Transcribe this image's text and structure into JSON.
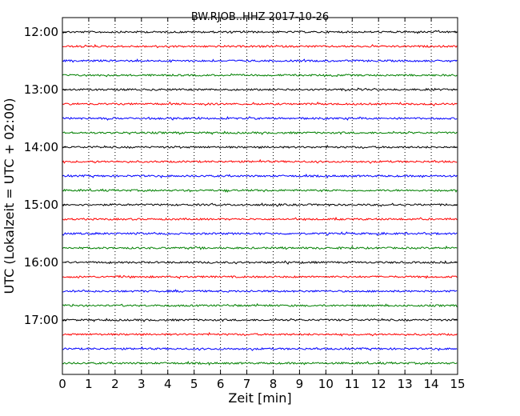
{
  "chart_data": {
    "type": "line",
    "title": "BW.RJOB..HHZ 2017-10-26",
    "xlabel": "Zeit  [min]",
    "ylabel": "UTC (Lokalzeit = UTC + 02:00)",
    "xlim": [
      0,
      15
    ],
    "x_ticks": [
      "0",
      "1",
      "2",
      "3",
      "4",
      "5",
      "6",
      "7",
      "8",
      "9",
      "10",
      "11",
      "12",
      "13",
      "14",
      "15"
    ],
    "y_ticks": [
      {
        "label": "12:00",
        "row": 0
      },
      {
        "label": "13:00",
        "row": 4
      },
      {
        "label": "14:00",
        "row": 8
      },
      {
        "label": "15:00",
        "row": 12
      },
      {
        "label": "16:00",
        "row": 16
      },
      {
        "label": "17:00",
        "row": 20
      }
    ],
    "row_count": 24,
    "grid": "vertical dotted",
    "colors": [
      "#000000",
      "#ff0000",
      "#0000ff",
      "#008000"
    ],
    "series_rows": [
      "12:00",
      "12:15",
      "12:30",
      "12:45",
      "13:00",
      "13:15",
      "13:30",
      "13:45",
      "14:00",
      "14:15",
      "14:30",
      "14:45",
      "15:00",
      "15:15",
      "15:30",
      "15:45",
      "16:00",
      "16:15",
      "16:30",
      "16:45",
      "17:00",
      "17:15",
      "17:30",
      "17:45"
    ]
  }
}
